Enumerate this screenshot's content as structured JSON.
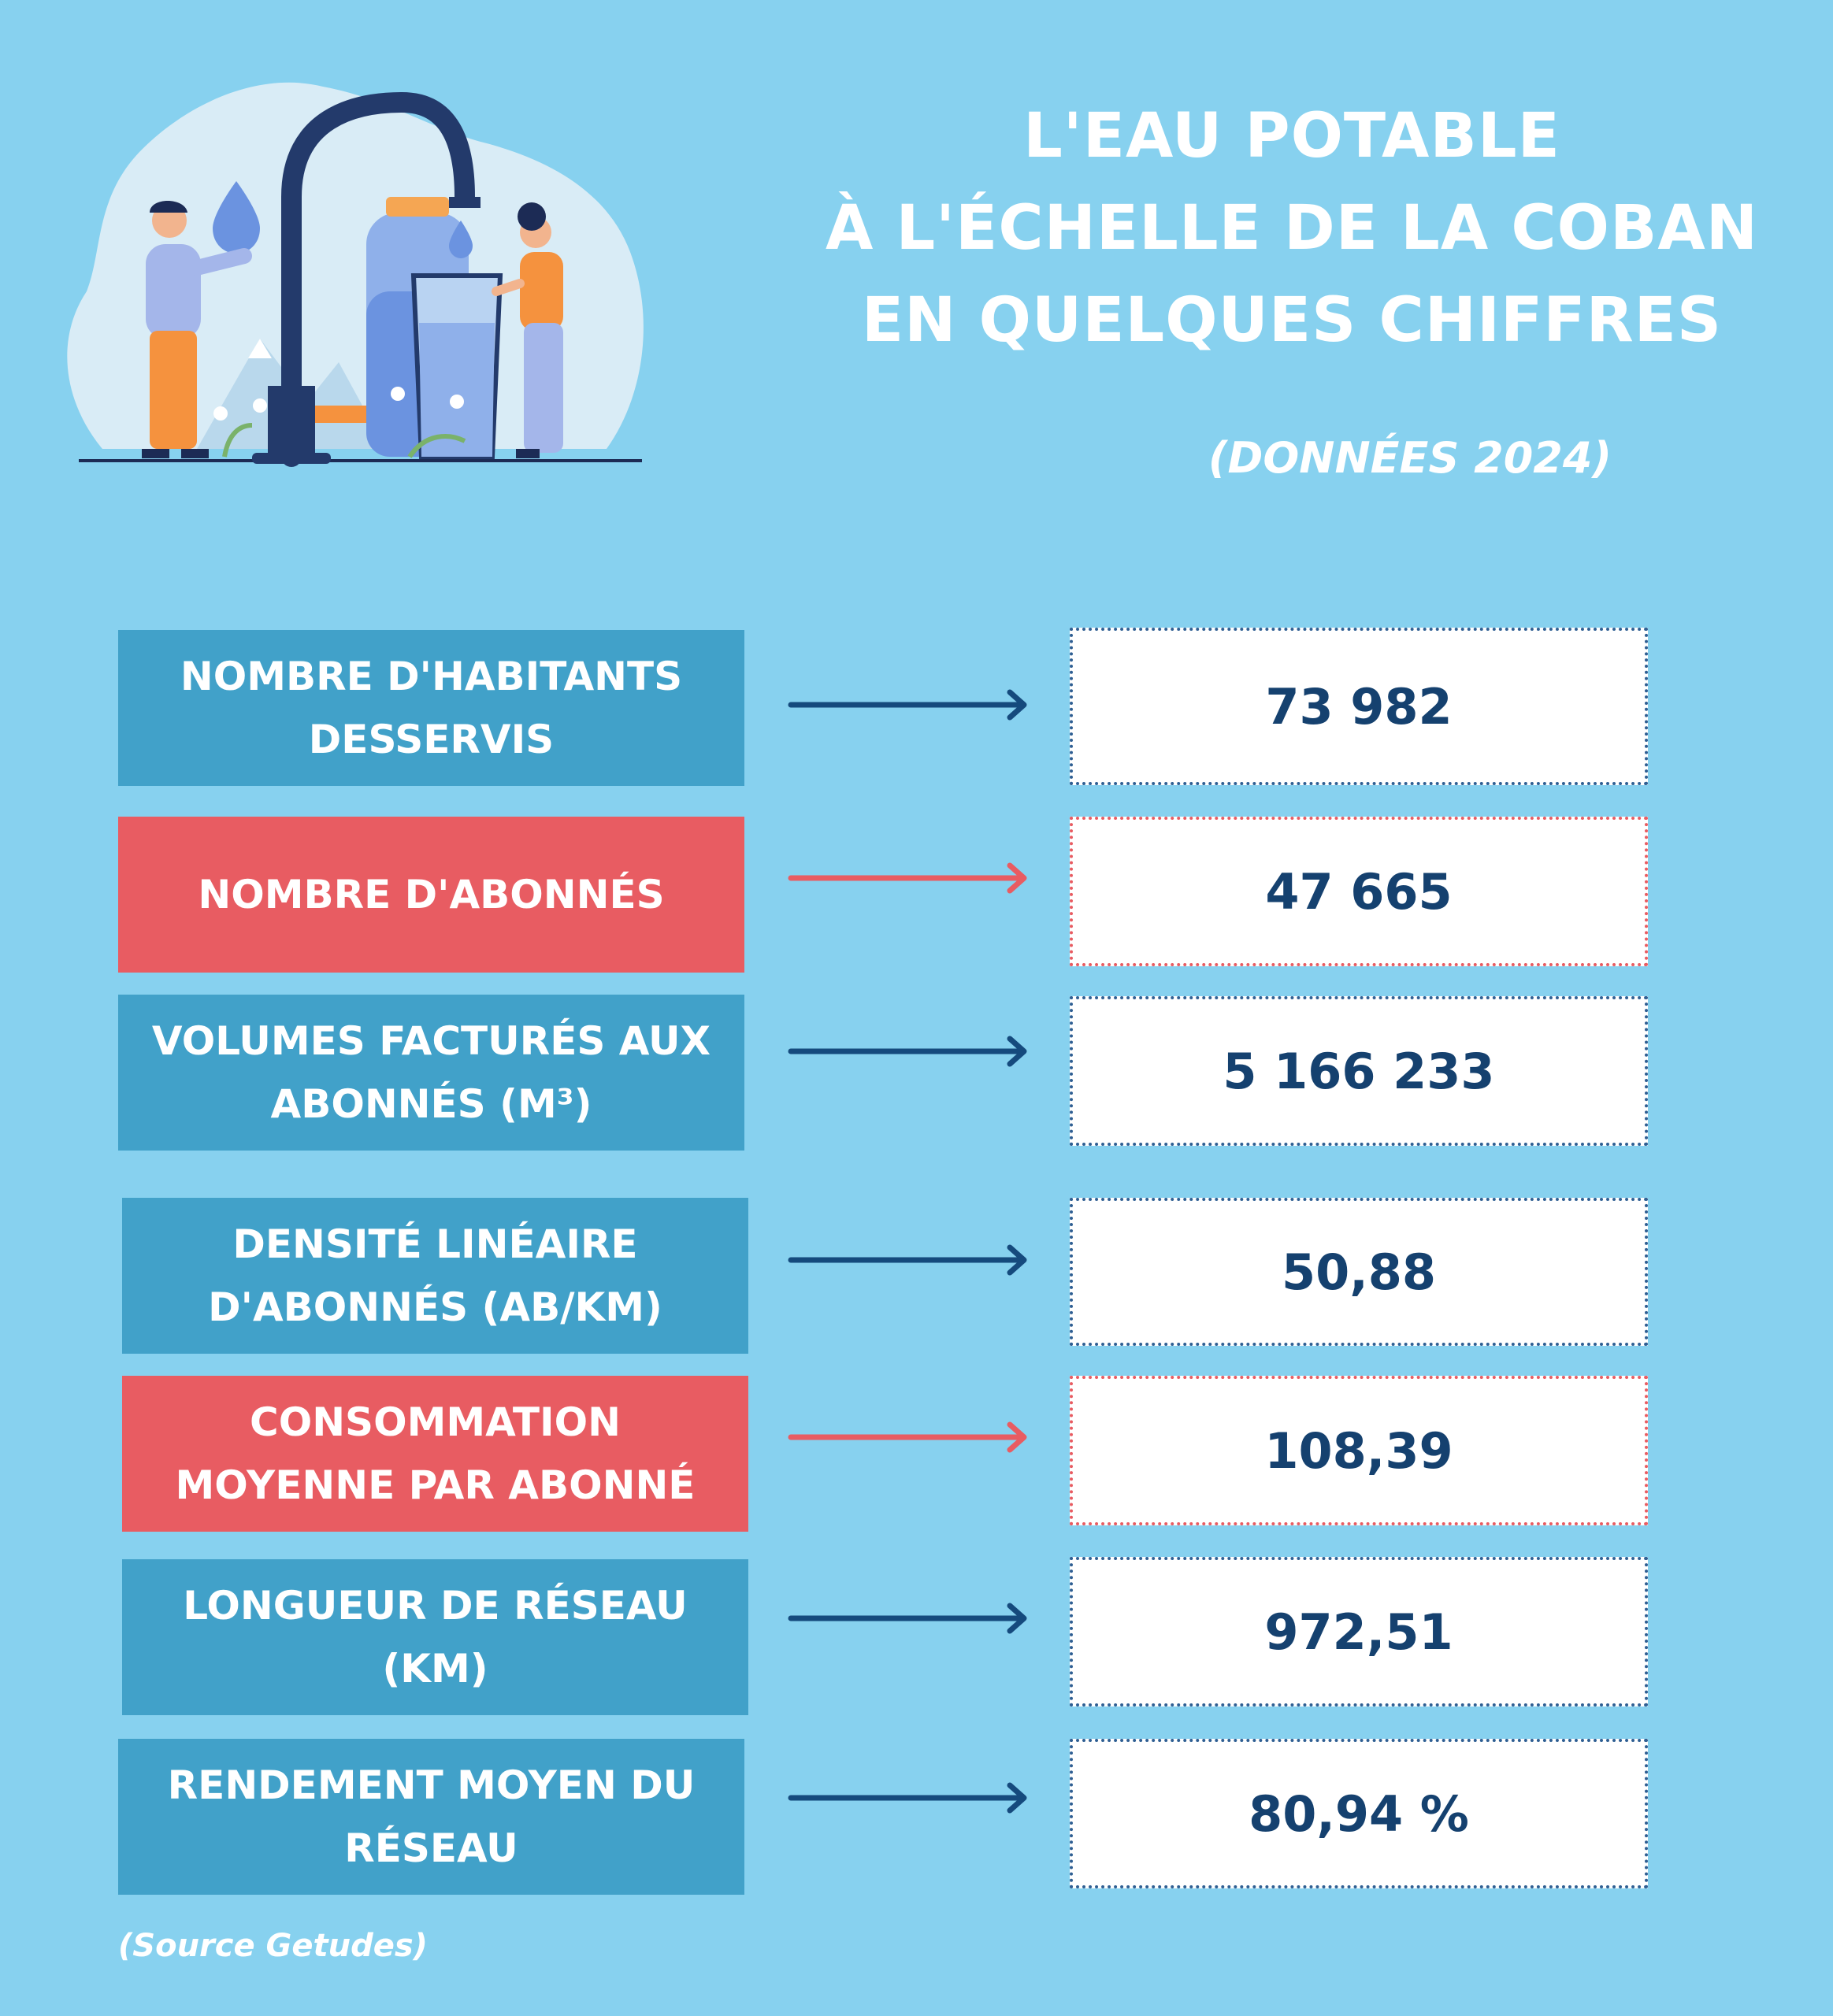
{
  "title": {
    "line1": "L'EAU POTABLE",
    "line2": "À L'ÉCHELLE DE LA COBAN",
    "line3": "EN QUELQUES CHIFFRES"
  },
  "subtitle": "(DONNÉES 2024)",
  "colors": {
    "background": "#87d1ef",
    "blue_box": "#41a1c9",
    "red_box": "#e85c62",
    "value_text": "#15416f",
    "arrow_blue": "#154a7d",
    "arrow_red": "#e85c62"
  },
  "rows": [
    {
      "label_line1": "NOMBRE D'HABITANTS",
      "label_line2": "DESSERVIS",
      "value": "73 982",
      "color": "blue"
    },
    {
      "label_line1": "NOMBRE D'ABONNÉS",
      "label_line2": "",
      "value": "47 665",
      "color": "red"
    },
    {
      "label_line1": "VOLUMES FACTURÉS AUX",
      "label_line2": "ABONNÉS (M³)",
      "value": "5 166 233",
      "color": "blue"
    },
    {
      "label_line1": "DENSITÉ LINÉAIRE",
      "label_line2": "D'ABONNÉS (AB/KM)",
      "value": "50,88",
      "color": "blue"
    },
    {
      "label_line1": "CONSOMMATION",
      "label_line2": "MOYENNE PAR ABONNÉ",
      "value": "108,39",
      "color": "red"
    },
    {
      "label_line1": "LONGUEUR DE RÉSEAU",
      "label_line2": "(KM)",
      "value": "972,51",
      "color": "blue"
    },
    {
      "label_line1": "RENDEMENT MOYEN DU",
      "label_line2": "RÉSEAU",
      "value": "80,94 %",
      "color": "blue"
    }
  ],
  "source": "(Source Getudes)",
  "illustration": {
    "icon": "water-tap-people-illustration"
  }
}
